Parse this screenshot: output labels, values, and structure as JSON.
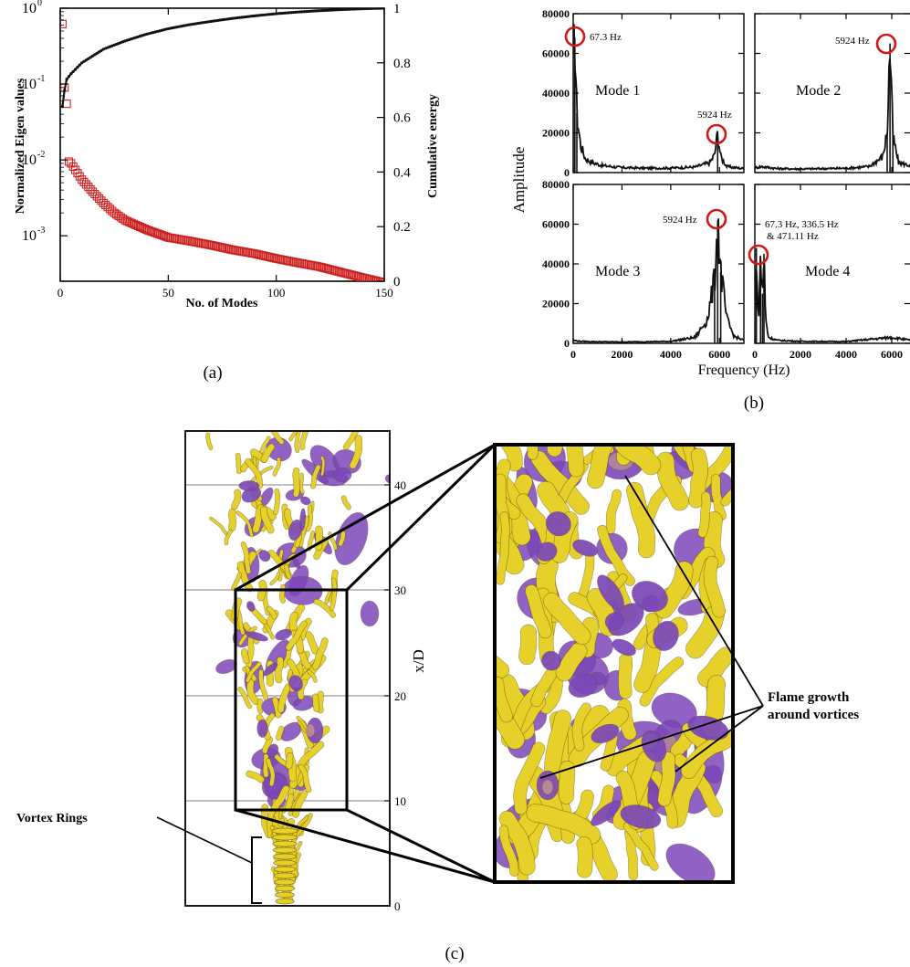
{
  "panel_a": {
    "caption": "(a)",
    "xlabel": "No. of Modes",
    "ylabel_left": "Normalized Eigen values",
    "ylabel_right": "Cumulative energy",
    "xticks": [
      "0",
      "50",
      "100",
      "150"
    ],
    "yticks_left": [
      {
        "base": "10",
        "exp": "0"
      },
      {
        "base": "10",
        "exp": "-1"
      },
      {
        "base": "10",
        "exp": "-2"
      },
      {
        "base": "10",
        "exp": "-3"
      }
    ],
    "yticks_right": [
      "0",
      "0.2",
      "0.4",
      "0.6",
      "0.8",
      "1"
    ]
  },
  "panel_b": {
    "caption": "(b)",
    "xlabel": "Frequency (Hz)",
    "ylabel": "Amplitude",
    "yticks": [
      "0",
      "20000",
      "40000",
      "60000",
      "80000"
    ],
    "xticks": [
      "0",
      "2000",
      "4000",
      "6000"
    ],
    "modes": [
      {
        "label": "Mode 1",
        "ann1": "67.3 Hz",
        "ann2": "5924 Hz"
      },
      {
        "label": "Mode 2",
        "ann1": "5924 Hz"
      },
      {
        "label": "Mode 3",
        "ann1": "5924 Hz"
      },
      {
        "label": "Mode 4",
        "ann1": "67.3 Hz,  336.5 Hz",
        "ann2": "&   471.11 Hz"
      }
    ]
  },
  "panel_c": {
    "caption": "(c)",
    "axis_label": "x/D",
    "ticks": [
      "0",
      "10",
      "20",
      "30",
      "40"
    ],
    "annot_left": "Vortex Rings",
    "annot_right_1": "Flame growth",
    "annot_right_2": "around vortices",
    "colors": {
      "flame": "#e6d02a",
      "vortex": "#7b47b8",
      "mixed": "#c9a08a"
    }
  },
  "chart_data": [
    {
      "type": "scatter",
      "xlabel": "No. of Modes",
      "ylabel": "Normalized Eigen values",
      "y2label": "Cumulative energy",
      "xlim": [
        0,
        150
      ],
      "ylim_log10": [
        -3.6,
        0
      ],
      "y2lim": [
        0,
        1
      ],
      "yscale": "log",
      "series": [
        {
          "marker": "square",
          "color": "#cc2222",
          "x": [
            1,
            2,
            3,
            4,
            5,
            10,
            15,
            20,
            25,
            30,
            40,
            50,
            60,
            70,
            80,
            90,
            100,
            110,
            120,
            130,
            140,
            150
          ],
          "y": [
            0.62,
            0.09,
            0.055,
            0.0095,
            0.009,
            0.0055,
            0.0038,
            0.0027,
            0.002,
            0.0016,
            0.0012,
            0.00095,
            0.00085,
            0.00075,
            0.00065,
            0.00058,
            0.0005,
            0.00044,
            0.00039,
            0.00033,
            0.00028,
            0.00024
          ]
        },
        {
          "marker": "line",
          "color": "#111111",
          "axis": "right",
          "x": [
            1,
            2,
            3,
            5,
            10,
            20,
            30,
            40,
            50,
            60,
            70,
            80,
            90,
            100,
            110,
            120,
            130,
            140,
            150
          ],
          "y": [
            0.64,
            0.7,
            0.74,
            0.76,
            0.8,
            0.85,
            0.88,
            0.905,
            0.925,
            0.94,
            0.952,
            0.963,
            0.972,
            0.98,
            0.986,
            0.991,
            0.995,
            0.998,
            1.0
          ]
        }
      ]
    },
    {
      "type": "line",
      "xlabel": "Frequency (Hz)",
      "ylabel": "Amplitude",
      "xlim": [
        0,
        7000
      ],
      "ylim": [
        0,
        80000
      ],
      "series": [
        {
          "name": "Mode 1",
          "x": [
            0,
            67,
            150,
            300,
            500,
            800,
            1200,
            2000,
            3000,
            4000,
            5000,
            5600,
            5800,
            5924,
            6050,
            6300,
            7000
          ],
          "y": [
            55000,
            68000,
            30000,
            14000,
            7000,
            5000,
            3500,
            2500,
            2200,
            2300,
            2800,
            5000,
            9000,
            20000,
            8000,
            3000,
            2000
          ]
        },
        {
          "name": "Mode 2",
          "x": [
            0,
            300,
            1000,
            2000,
            3000,
            4000,
            5000,
            5600,
            5800,
            5924,
            6050,
            6300,
            7000
          ],
          "y": [
            2500,
            3000,
            2000,
            1800,
            2000,
            2200,
            3000,
            8000,
            20000,
            65000,
            18000,
            5000,
            3000
          ]
        },
        {
          "name": "Mode 3",
          "x": [
            0,
            300,
            1000,
            2000,
            3000,
            4000,
            5000,
            5500,
            5800,
            5924,
            6050,
            6300,
            6600,
            7000
          ],
          "y": [
            1500,
            1000,
            800,
            700,
            800,
            1000,
            3000,
            12000,
            32000,
            62000,
            36000,
            12000,
            3500,
            1500
          ]
        },
        {
          "name": "Mode 4",
          "x": [
            0,
            67,
            150,
            250,
            336,
            400,
            471,
            600,
            1000,
            2000,
            4000,
            6000,
            7000
          ],
          "y": [
            20000,
            48000,
            10000,
            42000,
            25000,
            45000,
            12000,
            3000,
            1500,
            1000,
            900,
            3000,
            1200
          ]
        }
      ]
    }
  ]
}
